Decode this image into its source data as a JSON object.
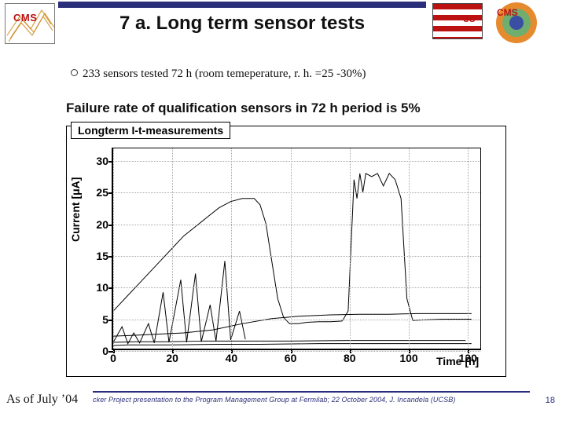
{
  "header": {
    "title": "7 a. Long term sensor tests",
    "left_logo_label": "CMS",
    "right_logos": {
      "flag_stripe_colors": [
        "#b11",
        "#fff",
        "#b11",
        "#fff",
        "#b11",
        "#fff",
        "#b11"
      ],
      "cms_disk_colors": [
        "#e68a2e",
        "#6fae6f",
        "#3a4ea3"
      ]
    },
    "bluebar_color": "#2b2f7a"
  },
  "bullet": {
    "text": "233 sensors tested 72 h (room temeperature, r. h. =25 -30%)"
  },
  "subtitle": "Failure rate of qualification sensors in 72 h period is 5%",
  "chart": {
    "type": "line",
    "title": "Longterm I-t-measurements",
    "ylabel": "Current [μA]",
    "xlabel": "Time [h]",
    "xlim": [
      0,
      125
    ],
    "ylim": [
      0,
      32
    ],
    "xticks": [
      0,
      20,
      40,
      60,
      80,
      100,
      120
    ],
    "yticks": [
      0,
      5,
      10,
      15,
      20,
      25,
      30
    ],
    "grid": true,
    "grid_color": "#a8a8a8",
    "line_color": "#000000",
    "line_width": 1,
    "background_color": "#ffffff",
    "title_fontsize": 14,
    "label_fontsize": 14,
    "tick_fontsize": 14,
    "series": [
      {
        "name": "s_baseline_a",
        "pts": [
          [
            0,
            0.5
          ],
          [
            5,
            0.6
          ],
          [
            10,
            0.6
          ],
          [
            20,
            0.6
          ],
          [
            35,
            0.7
          ],
          [
            50,
            0.7
          ],
          [
            70,
            0.8
          ],
          [
            90,
            0.8
          ],
          [
            110,
            0.8
          ],
          [
            122,
            0.8
          ]
        ]
      },
      {
        "name": "s_baseline_b",
        "pts": [
          [
            0,
            1.0
          ],
          [
            8,
            1.1
          ],
          [
            18,
            1.1
          ],
          [
            30,
            1.2
          ],
          [
            45,
            1.2
          ],
          [
            60,
            1.2
          ],
          [
            80,
            1.3
          ],
          [
            100,
            1.3
          ],
          [
            120,
            1.3
          ]
        ]
      },
      {
        "name": "s_mid",
        "pts": [
          [
            0,
            2.0
          ],
          [
            6,
            2.1
          ],
          [
            14,
            2.3
          ],
          [
            24,
            2.5
          ],
          [
            34,
            3.0
          ],
          [
            44,
            4.0
          ],
          [
            54,
            4.8
          ],
          [
            64,
            5.2
          ],
          [
            74,
            5.4
          ],
          [
            84,
            5.5
          ],
          [
            94,
            5.5
          ],
          [
            104,
            5.6
          ],
          [
            114,
            5.6
          ],
          [
            122,
            5.6
          ]
        ]
      },
      {
        "name": "s_spiky",
        "pts": [
          [
            0,
            1.0
          ],
          [
            3,
            3.5
          ],
          [
            5,
            0.8
          ],
          [
            7,
            2.5
          ],
          [
            9,
            0.9
          ],
          [
            12,
            4.0
          ],
          [
            14,
            0.9
          ],
          [
            17,
            9.0
          ],
          [
            19,
            1.0
          ],
          [
            23,
            11.0
          ],
          [
            25,
            1.0
          ],
          [
            28,
            12.0
          ],
          [
            30,
            1.1
          ],
          [
            33,
            7.0
          ],
          [
            35,
            1.2
          ],
          [
            38,
            14.0
          ],
          [
            40,
            1.4
          ],
          [
            43,
            6.0
          ],
          [
            45,
            1.5
          ]
        ]
      },
      {
        "name": "s_peak_main",
        "pts": [
          [
            0,
            6
          ],
          [
            4,
            8
          ],
          [
            8,
            10
          ],
          [
            12,
            12
          ],
          [
            16,
            14
          ],
          [
            20,
            16
          ],
          [
            24,
            18
          ],
          [
            28,
            19.5
          ],
          [
            32,
            21
          ],
          [
            36,
            22.5
          ],
          [
            40,
            23.5
          ],
          [
            44,
            24
          ],
          [
            48,
            24
          ],
          [
            50,
            23
          ],
          [
            52,
            20
          ],
          [
            54,
            14
          ],
          [
            56,
            8
          ],
          [
            58,
            5
          ],
          [
            60,
            4
          ],
          [
            63,
            4
          ],
          [
            66,
            4.2
          ],
          [
            70,
            4.3
          ],
          [
            74,
            4.3
          ],
          [
            78,
            4.4
          ]
        ]
      },
      {
        "name": "s_block2",
        "pts": [
          [
            78,
            4.4
          ],
          [
            80,
            6
          ],
          [
            82,
            27
          ],
          [
            83,
            24
          ],
          [
            84,
            28
          ],
          [
            85,
            25
          ],
          [
            86,
            28
          ],
          [
            88,
            27.5
          ],
          [
            90,
            28
          ],
          [
            92,
            26
          ],
          [
            94,
            28
          ],
          [
            96,
            27
          ],
          [
            98,
            24
          ],
          [
            100,
            8
          ],
          [
            102,
            4.5
          ],
          [
            106,
            4.6
          ],
          [
            112,
            4.7
          ],
          [
            118,
            4.7
          ],
          [
            122,
            4.7
          ]
        ]
      }
    ]
  },
  "footer": {
    "asof": "As of July ’04",
    "text": "cker Project presentation to the Program Management Group at Fermilab; 22 October 2004, J. Incandela (UCSB)",
    "page": "18",
    "rule_color": "#2b2f7a",
    "text_color": "#2b2f7a"
  }
}
